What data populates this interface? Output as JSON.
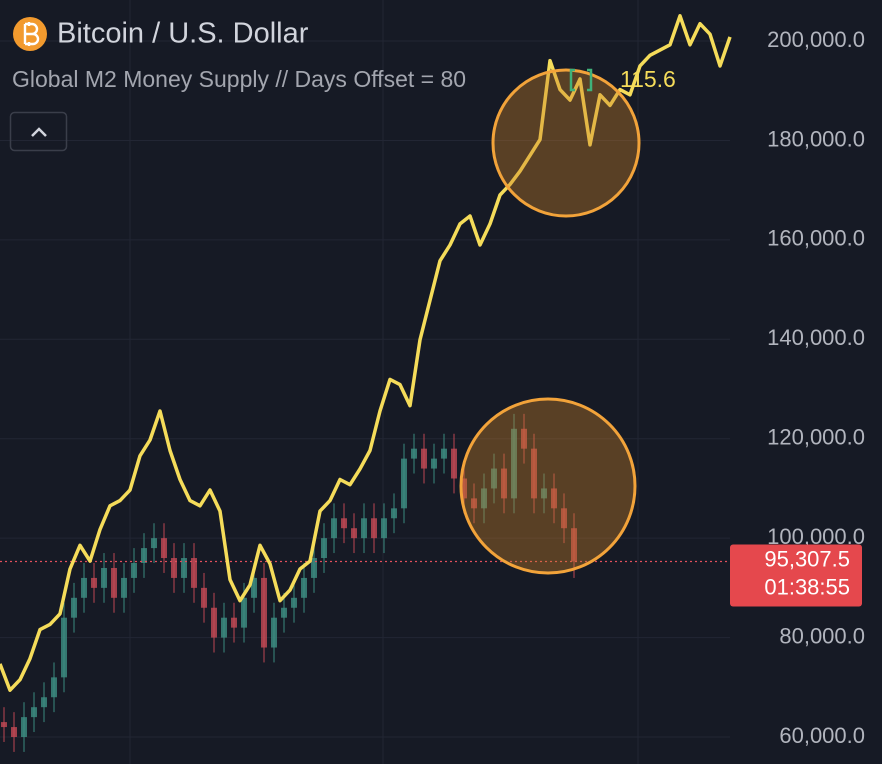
{
  "chart_data": [
    {
      "type": "candlestick",
      "title": "Bitcoin / U.S. Dollar",
      "up_color": "#3d8f83",
      "down_color": "#c44a55",
      "ylim": [
        54570,
        208250
      ],
      "yticks": [
        {
          "value": 60000,
          "label": "60,000.0"
        },
        {
          "value": 80000,
          "label": "80,000.0"
        },
        {
          "value": 100000,
          "label": "100,000.0"
        },
        {
          "value": 120000,
          "label": "120,000.0"
        },
        {
          "value": 140000,
          "label": "140,000.0"
        },
        {
          "value": 160000,
          "label": "160,000.0"
        },
        {
          "value": 180000,
          "label": "180,000.0"
        },
        {
          "value": 200000,
          "label": "200,000.0"
        }
      ],
      "grid": true,
      "open": [
        63000,
        62000,
        60000,
        64000,
        66000,
        68000,
        72000,
        84000,
        88000,
        92000,
        90000,
        94000,
        88000,
        92000,
        95000,
        98000,
        100000,
        96000,
        92000,
        96000,
        90000,
        86000,
        80000,
        84000,
        82000,
        88000,
        92000,
        78000,
        84000,
        86000,
        88000,
        92000,
        96000,
        100000,
        104000,
        102000,
        100000,
        104000,
        100000,
        104000,
        106000,
        116000,
        118000,
        114000,
        116000,
        118000,
        112000,
        108000,
        106000,
        110000,
        114000,
        108000,
        122000,
        118000,
        108000,
        110000,
        106000,
        102000
      ],
      "high": [
        66000,
        65000,
        67000,
        69000,
        71000,
        75000,
        87000,
        91000,
        95000,
        95000,
        97000,
        97000,
        95000,
        98000,
        101000,
        103000,
        103000,
        99000,
        99000,
        99000,
        93000,
        89000,
        87000,
        87000,
        91000,
        95000,
        95000,
        87000,
        89000,
        91000,
        95000,
        99000,
        103000,
        107000,
        107000,
        105000,
        107000,
        107000,
        107000,
        109000,
        119000,
        121000,
        121000,
        119000,
        121000,
        121000,
        115000,
        111000,
        113000,
        117000,
        117000,
        125000,
        125000,
        121000,
        113000,
        113000,
        109000,
        105000
      ],
      "low": [
        59000,
        57000,
        57000,
        61000,
        63000,
        65000,
        69000,
        81000,
        85000,
        87000,
        87000,
        85000,
        85000,
        89000,
        92000,
        95000,
        93000,
        89000,
        89000,
        87000,
        83000,
        77000,
        77000,
        79000,
        79000,
        85000,
        75000,
        75000,
        81000,
        83000,
        85000,
        89000,
        93000,
        97000,
        99000,
        97000,
        97000,
        97000,
        97000,
        101000,
        103000,
        113000,
        111000,
        111000,
        113000,
        109000,
        105000,
        103000,
        103000,
        107000,
        105000,
        105000,
        115000,
        105000,
        105000,
        103000,
        99000,
        92000
      ],
      "close": [
        62000,
        60000,
        64000,
        66000,
        68000,
        72000,
        84000,
        88000,
        92000,
        90000,
        94000,
        88000,
        92000,
        95000,
        98000,
        100000,
        96000,
        92000,
        96000,
        90000,
        86000,
        80000,
        84000,
        82000,
        88000,
        92000,
        78000,
        84000,
        86000,
        88000,
        92000,
        96000,
        100000,
        104000,
        102000,
        100000,
        104000,
        100000,
        104000,
        106000,
        116000,
        118000,
        114000,
        116000,
        118000,
        112000,
        108000,
        106000,
        110000,
        114000,
        108000,
        122000,
        118000,
        108000,
        110000,
        106000,
        102000,
        95307.5
      ],
      "last_price": {
        "value": 95307.5,
        "label": "95,307.5"
      },
      "countdown": "01:38:55"
    },
    {
      "type": "line",
      "title": "Global M2 Money Supply // Days Offset = 80",
      "color": "#f5dc5a",
      "ylim": [
        88,
        117
      ],
      "values": [
        91.8,
        90.8,
        91.2,
        92.0,
        93.1,
        93.3,
        93.7,
        95.4,
        96.3,
        95.7,
        96.9,
        97.8,
        98.0,
        98.4,
        99.7,
        100.3,
        101.4,
        99.9,
        98.8,
        98.0,
        97.8,
        98.4,
        97.6,
        95.0,
        94.2,
        94.8,
        96.3,
        95.6,
        94.2,
        94.6,
        95.4,
        95.7,
        97.6,
        98.0,
        98.8,
        98.6,
        99.2,
        99.9,
        101.4,
        102.6,
        102.4,
        101.6,
        104.1,
        105.6,
        107.1,
        107.7,
        108.5,
        108.8,
        107.7,
        108.5,
        109.6,
        110.0,
        110.5,
        111.1,
        111.7,
        114.7,
        113.6,
        113.2,
        114.0,
        111.5,
        113.4,
        113.0,
        113.6,
        113.4,
        114.5,
        114.9,
        115.1,
        115.3,
        116.4,
        115.3,
        116.1,
        115.7,
        114.5,
        115.6
      ]
    }
  ]
}
